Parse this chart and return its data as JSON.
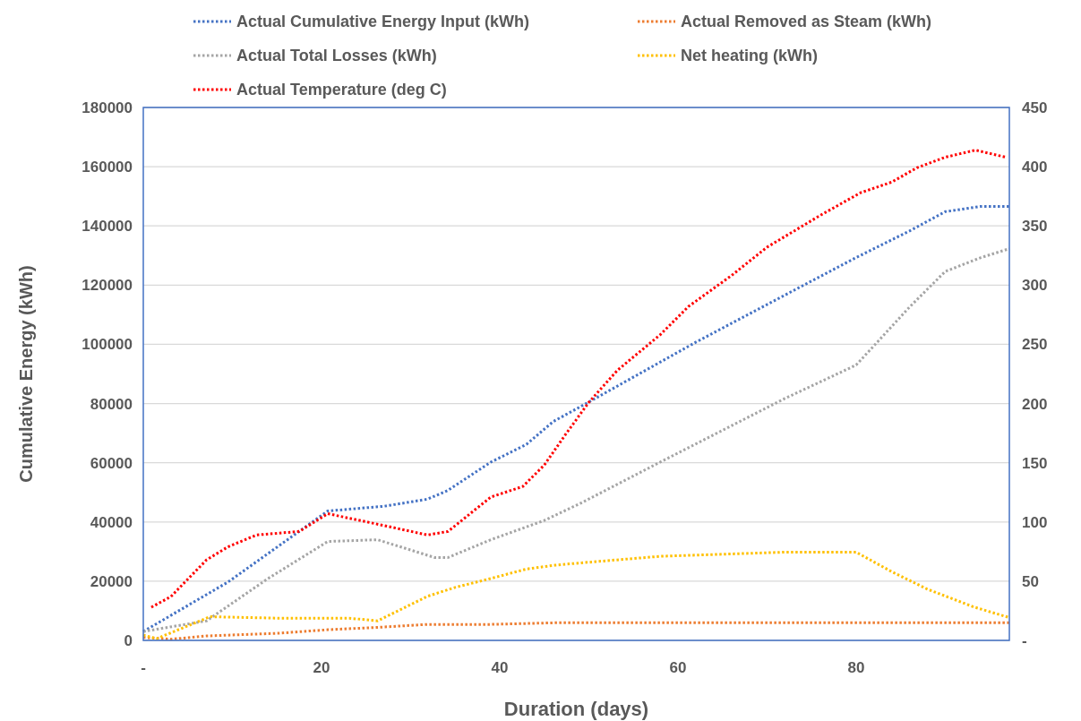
{
  "chart_data": {
    "type": "line",
    "xlabel": "Duration (days)",
    "ylabel": "Cumulative Energy (kWh)",
    "xlim": [
      0,
      97.2
    ],
    "xticks": [
      {
        "value": 0,
        "label": "-"
      },
      20,
      40,
      60,
      80
    ],
    "ylim": [
      0,
      180000
    ],
    "yticks": [
      0,
      20000,
      40000,
      60000,
      80000,
      100000,
      120000,
      140000,
      160000,
      180000
    ],
    "y2lim": [
      0,
      450
    ],
    "y2ticks": [
      {
        "value": 0,
        "label": "-"
      },
      50,
      100,
      150,
      200,
      250,
      300,
      350,
      400,
      450
    ],
    "grid": "y",
    "legend": "top",
    "line_style": "dotted",
    "marker": "none",
    "series": [
      {
        "name": "Actual Cumulative Energy Input (kWh)",
        "color": "#4472c4",
        "x": [
          0,
          9.5,
          15.9,
          20.7,
          27,
          31.9,
          34.2,
          39,
          43,
          46,
          50,
          62,
          74,
          80,
          86,
          90,
          94,
          97.2
        ],
        "values": [
          3000,
          19700,
          33400,
          43700,
          45300,
          47700,
          50700,
          60200,
          66200,
          73900,
          80500,
          100700,
          119800,
          129300,
          138300,
          144800,
          146600,
          146600
        ]
      },
      {
        "name": "Actual Removed as Steam (kWh)",
        "color": "#ed7d31",
        "x": [
          0,
          3.1,
          7.1,
          15.1,
          20.7,
          26.3,
          31.9,
          39,
          47,
          97.2
        ],
        "values": [
          1000,
          400,
          1500,
          2400,
          3600,
          4400,
          5400,
          5400,
          6000,
          6000
        ]
      },
      {
        "name": "Actual Total Losses (kWh)",
        "color": "#a5a5a5",
        "x": [
          0,
          7.1,
          14,
          20.7,
          26.3,
          32.7,
          34.2,
          39,
          45,
          49.2,
          58,
          72,
          80,
          82,
          86,
          90,
          94,
          97.2
        ],
        "values": [
          3000,
          6600,
          20900,
          33400,
          34000,
          28000,
          28000,
          34000,
          40500,
          46500,
          60200,
          81700,
          93000,
          99500,
          112600,
          124600,
          129300,
          132300
        ]
      },
      {
        "name": "Net heating (kWh)",
        "color": "#ffc000",
        "x": [
          0,
          1.5,
          7.5,
          15.1,
          23.1,
          26.3,
          31.9,
          35,
          39,
          43,
          46.2,
          49.2,
          58,
          66,
          72,
          80,
          84,
          88,
          93.2,
          97.2
        ],
        "values": [
          1800,
          600,
          8000,
          7500,
          7500,
          6600,
          14900,
          17900,
          20900,
          24100,
          25400,
          26200,
          28400,
          29200,
          29800,
          29800,
          23200,
          17300,
          11300,
          7700
        ]
      },
      {
        "name": "Actual Temperature (deg C)",
        "color": "#ff0000",
        "axis": "y2",
        "x": [
          0.9,
          3.1,
          7.1,
          9.5,
          12.7,
          17.5,
          20.7,
          27,
          31.9,
          34.2,
          39,
          42.6,
          45,
          47.4,
          50,
          53.2,
          58,
          61.2,
          66,
          70,
          76,
          80.5,
          84,
          86.8,
          90,
          93.4,
          96.8
        ],
        "values": [
          28,
          37,
          68,
          79,
          89,
          92,
          107,
          97,
          89,
          92,
          121,
          130,
          148,
          174,
          201,
          228,
          258,
          282,
          308,
          332,
          359,
          378,
          387,
          399,
          408,
          414,
          408
        ]
      }
    ]
  }
}
